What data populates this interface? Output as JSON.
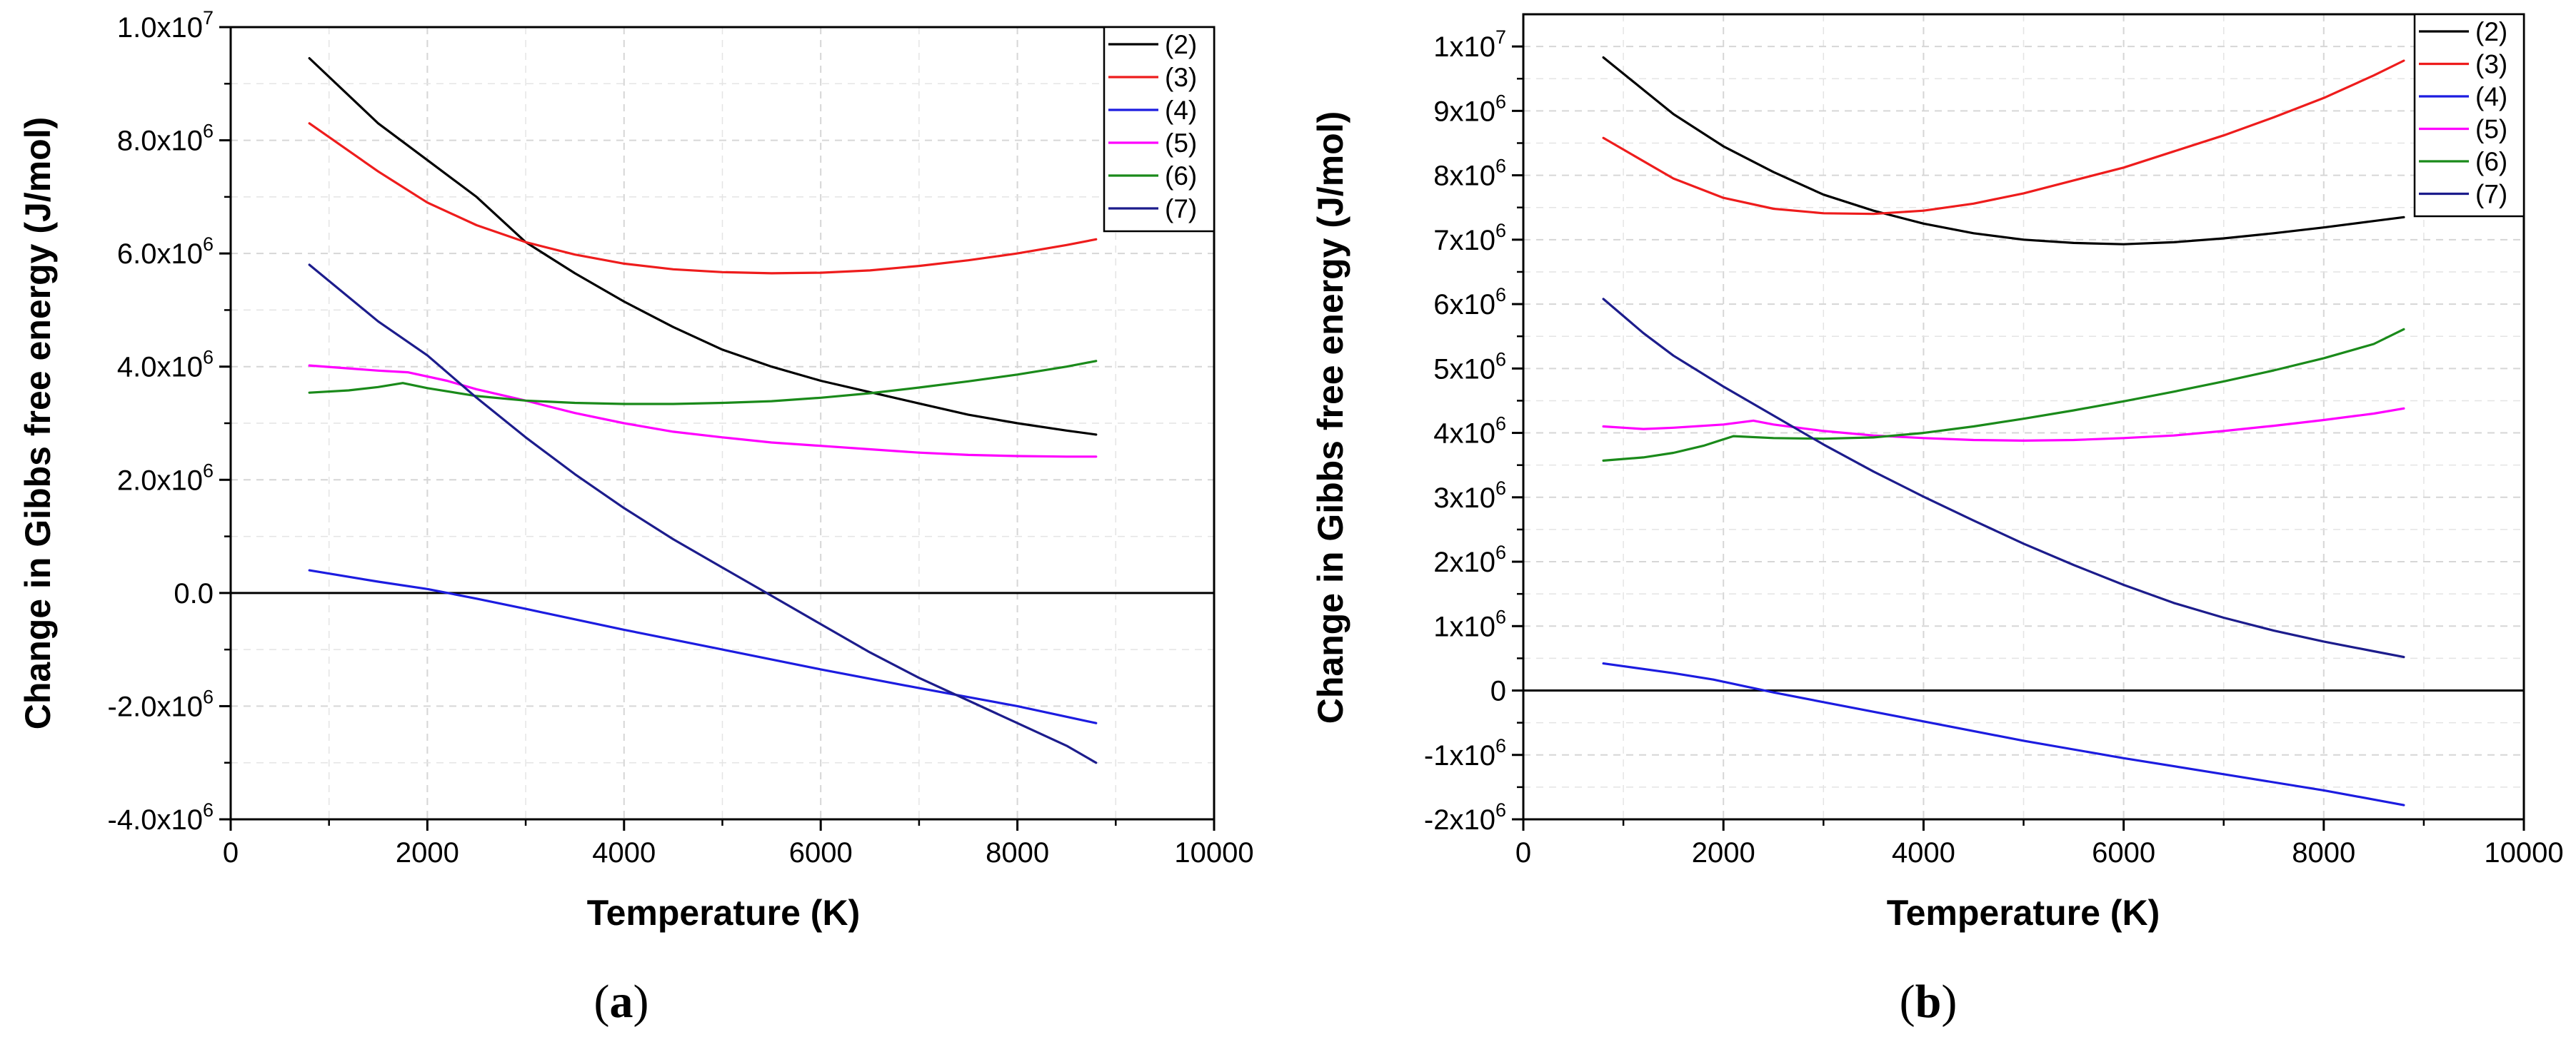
{
  "chart_data": [
    {
      "type": "line",
      "caption": {
        "open": "(",
        "letter": "a",
        "close": ")"
      },
      "xlabel": "Temperature (K)",
      "ylabel": "Change in Gibbs free energy (J/mol)",
      "xlim": [
        0,
        10000
      ],
      "ylim": [
        -4000000,
        10000000
      ],
      "grid": true,
      "legend_position": "top-right",
      "x_ticks": [
        {
          "value": 0,
          "label": "0"
        },
        {
          "value": 2000,
          "label": "2000"
        },
        {
          "value": 4000,
          "label": "4000"
        },
        {
          "value": 6000,
          "label": "6000"
        },
        {
          "value": 8000,
          "label": "8000"
        },
        {
          "value": 10000,
          "label": "10000"
        }
      ],
      "y_ticks": [
        {
          "value": -4000000,
          "base": "-4.0x10",
          "exp": "6"
        },
        {
          "value": -2000000,
          "base": "-2.0x10",
          "exp": "6"
        },
        {
          "value": 0,
          "base": "0.0",
          "exp": ""
        },
        {
          "value": 2000000,
          "base": "2.0x10",
          "exp": "6"
        },
        {
          "value": 4000000,
          "base": "4.0x10",
          "exp": "6"
        },
        {
          "value": 6000000,
          "base": "6.0x10",
          "exp": "6"
        },
        {
          "value": 8000000,
          "base": "8.0x10",
          "exp": "6"
        },
        {
          "value": 10000000,
          "base": "1.0x10",
          "exp": "7"
        }
      ],
      "series": [
        {
          "name": "(2)",
          "color": "#000000",
          "x": [
            800,
            1500,
            2000,
            2500,
            3000,
            3500,
            4000,
            4500,
            5000,
            5500,
            6000,
            6500,
            7000,
            7500,
            8000,
            8500,
            8800
          ],
          "y": [
            9450000,
            8300000,
            7650000,
            7000000,
            6200000,
            5650000,
            5150000,
            4700000,
            4300000,
            4000000,
            3750000,
            3550000,
            3350000,
            3150000,
            3000000,
            2870000,
            2800000
          ]
        },
        {
          "name": "(3)",
          "color": "#ee1c1c",
          "x": [
            800,
            1500,
            2000,
            2500,
            3000,
            3500,
            4000,
            4500,
            5000,
            5500,
            6000,
            6500,
            7000,
            7500,
            8000,
            8500,
            8800
          ],
          "y": [
            8300000,
            7450000,
            6900000,
            6500000,
            6200000,
            5980000,
            5820000,
            5720000,
            5670000,
            5650000,
            5660000,
            5700000,
            5780000,
            5880000,
            6000000,
            6150000,
            6250000
          ]
        },
        {
          "name": "(4)",
          "color": "#1c1ce0",
          "x": [
            800,
            1500,
            2000,
            2500,
            3000,
            4000,
            5000,
            6000,
            7000,
            8000,
            8800
          ],
          "y": [
            400000,
            200000,
            70000,
            -100000,
            -280000,
            -650000,
            -1000000,
            -1350000,
            -1680000,
            -2000000,
            -2300000
          ]
        },
        {
          "name": "(5)",
          "color": "#ff00ff",
          "x": [
            800,
            1500,
            1800,
            2200,
            2500,
            3000,
            3500,
            4000,
            4500,
            5000,
            5500,
            6000,
            6500,
            7000,
            7500,
            8000,
            8500,
            8800
          ],
          "y": [
            4020000,
            3930000,
            3900000,
            3750000,
            3600000,
            3400000,
            3180000,
            3000000,
            2850000,
            2750000,
            2660000,
            2600000,
            2540000,
            2480000,
            2440000,
            2420000,
            2410000,
            2410000
          ]
        },
        {
          "name": "(6)",
          "color": "#1a8a1a",
          "x": [
            800,
            1200,
            1500,
            1750,
            2000,
            2500,
            3000,
            3500,
            4000,
            4500,
            5000,
            5500,
            6000,
            6500,
            7000,
            7500,
            8000,
            8500,
            8800
          ],
          "y": [
            3540000,
            3580000,
            3640000,
            3710000,
            3620000,
            3480000,
            3400000,
            3360000,
            3340000,
            3340000,
            3360000,
            3390000,
            3450000,
            3530000,
            3630000,
            3740000,
            3860000,
            4000000,
            4100000
          ]
        },
        {
          "name": "(7)",
          "color": "#1c1c8c",
          "x": [
            800,
            1500,
            2000,
            2500,
            3000,
            3500,
            4000,
            4500,
            5000,
            5500,
            6000,
            6500,
            7000,
            7500,
            8000,
            8500,
            8800
          ],
          "y": [
            5800000,
            4800000,
            4200000,
            3450000,
            2750000,
            2100000,
            1500000,
            950000,
            450000,
            -50000,
            -550000,
            -1050000,
            -1500000,
            -1900000,
            -2300000,
            -2700000,
            -3000000
          ]
        }
      ]
    },
    {
      "type": "line",
      "caption": {
        "open": "(",
        "letter": "b",
        "close": ")"
      },
      "xlabel": "Temperature (K)",
      "ylabel": "Change in Gibbs free energy (J/mol)",
      "xlim": [
        0,
        10000
      ],
      "ylim": [
        -2000000,
        10500000
      ],
      "grid": true,
      "legend_position": "top-right",
      "x_ticks": [
        {
          "value": 0,
          "label": "0"
        },
        {
          "value": 2000,
          "label": "2000"
        },
        {
          "value": 4000,
          "label": "4000"
        },
        {
          "value": 6000,
          "label": "6000"
        },
        {
          "value": 8000,
          "label": "8000"
        },
        {
          "value": 10000,
          "label": "10000"
        }
      ],
      "y_ticks": [
        {
          "value": -2000000,
          "base": "-2x10",
          "exp": "6"
        },
        {
          "value": -1000000,
          "base": "-1x10",
          "exp": "6"
        },
        {
          "value": 0,
          "base": "0",
          "exp": ""
        },
        {
          "value": 1000000,
          "base": "1x10",
          "exp": "6"
        },
        {
          "value": 2000000,
          "base": "2x10",
          "exp": "6"
        },
        {
          "value": 3000000,
          "base": "3x10",
          "exp": "6"
        },
        {
          "value": 4000000,
          "base": "4x10",
          "exp": "6"
        },
        {
          "value": 5000000,
          "base": "5x10",
          "exp": "6"
        },
        {
          "value": 6000000,
          "base": "6x10",
          "exp": "6"
        },
        {
          "value": 7000000,
          "base": "7x10",
          "exp": "6"
        },
        {
          "value": 8000000,
          "base": "8x10",
          "exp": "6"
        },
        {
          "value": 9000000,
          "base": "9x10",
          "exp": "6"
        },
        {
          "value": 10000000,
          "base": "1x10",
          "exp": "7"
        }
      ],
      "series": [
        {
          "name": "(2)",
          "color": "#000000",
          "x": [
            800,
            1500,
            2000,
            2500,
            3000,
            3500,
            4000,
            4500,
            5000,
            5500,
            6000,
            6500,
            7000,
            7500,
            8000,
            8500,
            8800
          ],
          "y": [
            9830000,
            8950000,
            8450000,
            8050000,
            7700000,
            7450000,
            7250000,
            7100000,
            7000000,
            6950000,
            6930000,
            6960000,
            7020000,
            7100000,
            7190000,
            7290000,
            7350000
          ]
        },
        {
          "name": "(3)",
          "color": "#ee1c1c",
          "x": [
            800,
            1500,
            2000,
            2500,
            3000,
            3500,
            4000,
            4500,
            5000,
            5500,
            6000,
            6500,
            7000,
            7500,
            8000,
            8500,
            8800
          ],
          "y": [
            8580000,
            7950000,
            7650000,
            7480000,
            7410000,
            7400000,
            7450000,
            7560000,
            7720000,
            7920000,
            8120000,
            8370000,
            8620000,
            8900000,
            9200000,
            9550000,
            9780000
          ]
        },
        {
          "name": "(4)",
          "color": "#1c1ce0",
          "x": [
            800,
            1500,
            1900,
            2500,
            3000,
            4000,
            5000,
            6000,
            7000,
            8000,
            8800
          ],
          "y": [
            420000,
            270000,
            170000,
            -30000,
            -180000,
            -480000,
            -780000,
            -1050000,
            -1300000,
            -1550000,
            -1780000
          ]
        },
        {
          "name": "(5)",
          "color": "#ff00ff",
          "x": [
            800,
            1200,
            1500,
            2000,
            2300,
            2500,
            3000,
            3500,
            4000,
            4500,
            5000,
            5500,
            6000,
            6500,
            7000,
            7500,
            8000,
            8500,
            8800
          ],
          "y": [
            4100000,
            4060000,
            4080000,
            4130000,
            4190000,
            4130000,
            4030000,
            3960000,
            3920000,
            3890000,
            3880000,
            3890000,
            3920000,
            3960000,
            4030000,
            4110000,
            4200000,
            4300000,
            4380000
          ]
        },
        {
          "name": "(6)",
          "color": "#1a8a1a",
          "x": [
            800,
            1200,
            1500,
            1800,
            2100,
            2500,
            3000,
            3500,
            4000,
            4500,
            5000,
            5500,
            6000,
            6500,
            7000,
            7500,
            8000,
            8500,
            8800
          ],
          "y": [
            3570000,
            3620000,
            3690000,
            3800000,
            3950000,
            3920000,
            3910000,
            3930000,
            4000000,
            4100000,
            4220000,
            4350000,
            4490000,
            4640000,
            4800000,
            4970000,
            5160000,
            5380000,
            5610000
          ]
        },
        {
          "name": "(7)",
          "color": "#1c1c8c",
          "x": [
            800,
            1200,
            1500,
            2000,
            2500,
            3000,
            3500,
            4000,
            4500,
            5000,
            5500,
            6000,
            6500,
            7000,
            7500,
            8000,
            8500,
            8800
          ],
          "y": [
            6080000,
            5550000,
            5200000,
            4720000,
            4270000,
            3820000,
            3400000,
            3010000,
            2640000,
            2280000,
            1950000,
            1640000,
            1360000,
            1130000,
            930000,
            760000,
            610000,
            520000
          ]
        }
      ]
    }
  ]
}
